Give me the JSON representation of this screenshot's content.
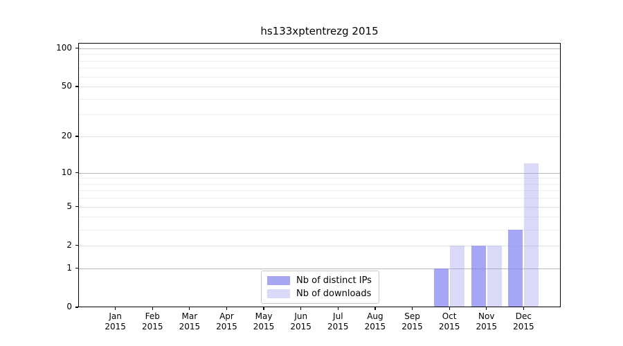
{
  "chart_data": {
    "type": "bar",
    "title": "hs133xptentrezg 2015",
    "categories": [
      "Jan",
      "Feb",
      "Mar",
      "Apr",
      "May",
      "Jun",
      "Jul",
      "Aug",
      "Sep",
      "Oct",
      "Nov",
      "Dec"
    ],
    "category_year": "2015",
    "series": [
      {
        "name": "Nb of distinct IPs",
        "values": [
          0,
          0,
          0,
          0,
          0,
          0,
          0,
          0,
          0,
          1,
          2,
          3
        ],
        "color": "rgba(128,128,244,0.7)",
        "legend_color": "#a6a6f3"
      },
      {
        "name": "Nb of downloads",
        "values": [
          0,
          0,
          0,
          0,
          0,
          0,
          0,
          0,
          0,
          2,
          2,
          12
        ],
        "color": "rgba(150,150,235,0.35)",
        "legend_color": "#dadaf8"
      }
    ],
    "y_scale": "log1p",
    "ylim": [
      0,
      110
    ],
    "y_ticks": [
      0,
      1,
      2,
      5,
      10,
      20,
      50,
      100
    ],
    "y_decade_gridlines": [
      1,
      10,
      100
    ],
    "y_minor_gridlines": [
      3,
      4,
      6,
      7,
      8,
      9,
      30,
      40,
      60,
      70,
      80,
      90
    ],
    "xlabel": "",
    "ylabel": "",
    "grid": "horizontal",
    "legend_position": "lower center"
  }
}
